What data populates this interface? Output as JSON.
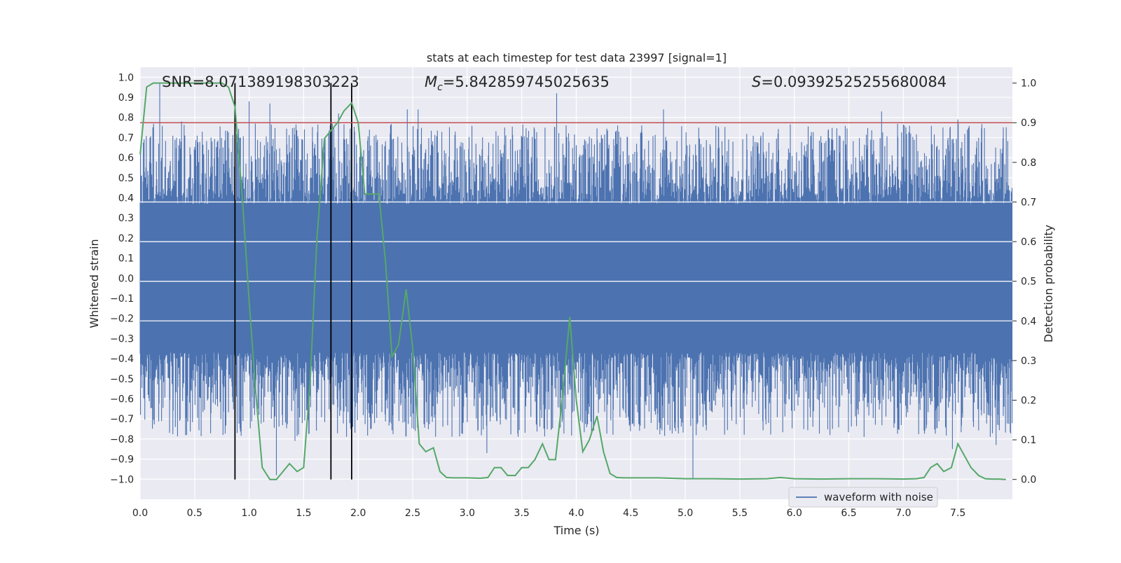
{
  "chart_data": {
    "type": "line",
    "title": "stats at each timestep for test data 23997 [signal=1]",
    "xlabel": "Time (s)",
    "ylabel_left": "Whitened strain",
    "ylabel_right": "Detection probability",
    "xlim": [
      0.0,
      8.0
    ],
    "ylim_left": [
      -1.1,
      1.05
    ],
    "ylim_right": [
      -0.05,
      1.04
    ],
    "x_ticks": [
      "0.0",
      "0.5",
      "1.0",
      "1.5",
      "2.0",
      "2.5",
      "3.0",
      "3.5",
      "4.0",
      "4.5",
      "5.0",
      "5.5",
      "6.0",
      "6.5",
      "7.0",
      "7.5"
    ],
    "y_ticks_left": [
      "1.0",
      "0.9",
      "0.8",
      "0.7",
      "0.6",
      "0.5",
      "0.4",
      "0.3",
      "0.2",
      "0.1",
      "0.0",
      "−0.1",
      "−0.2",
      "−0.3",
      "−0.4",
      "−0.5",
      "−0.6",
      "−0.7",
      "−0.8",
      "−0.9",
      "−1.0"
    ],
    "y_ticks_right": [
      "1.0",
      "0.9",
      "0.8",
      "0.7",
      "0.6",
      "0.5",
      "0.4",
      "0.3",
      "0.2",
      "0.1",
      "0.0"
    ],
    "grid": true,
    "legend_position": "bottom-right",
    "annotations": {
      "snr": "SNR=8.071389198303223",
      "mc_symbol": "M",
      "mc_sub": "c",
      "mc_value": "=5.842859745025635",
      "s_symbol": "S",
      "s_value": "=0.09392525255680084"
    },
    "series": [
      {
        "name": "waveform with noise",
        "color": "#4c72b0",
        "axis": "left",
        "description_kind": "dense noisy strain",
        "band": [
          -0.37,
          0.37
        ],
        "peaks": [
          {
            "x": 0.18,
            "y": 0.97
          },
          {
            "x": 0.38,
            "y": 0.78
          },
          {
            "x": 0.65,
            "y": 0.7
          },
          {
            "x": 1.0,
            "y": 0.88
          },
          {
            "x": 1.19,
            "y": 0.87
          },
          {
            "x": 1.82,
            "y": 0.82
          },
          {
            "x": 2.45,
            "y": 0.84
          },
          {
            "x": 2.55,
            "y": 0.84
          },
          {
            "x": 3.82,
            "y": 0.92
          },
          {
            "x": 4.8,
            "y": 0.84
          },
          {
            "x": 6.8,
            "y": 0.83
          },
          {
            "x": 7.5,
            "y": 0.79
          },
          {
            "x": 2.27,
            "y": -0.6
          },
          {
            "x": 1.25,
            "y": -0.98
          },
          {
            "x": 5.07,
            "y": -1.0
          },
          {
            "x": 7.45,
            "y": -0.85
          },
          {
            "x": 7.85,
            "y": -0.83
          },
          {
            "x": 0.27,
            "y": -0.77
          },
          {
            "x": 3.18,
            "y": -0.87
          },
          {
            "x": 1.42,
            "y": -0.81
          },
          {
            "x": 3.9,
            "y": -0.65
          }
        ]
      },
      {
        "name": "",
        "color": "#55a868",
        "axis": "right",
        "x": [
          0.0,
          0.06,
          0.12,
          0.25,
          0.5,
          0.75,
          0.81,
          0.87,
          0.94,
          1.0,
          1.06,
          1.12,
          1.19,
          1.25,
          1.31,
          1.37,
          1.44,
          1.5,
          1.56,
          1.62,
          1.69,
          1.75,
          1.81,
          1.87,
          1.94,
          2.0,
          2.06,
          2.12,
          2.19,
          2.25,
          2.31,
          2.37,
          2.44,
          2.5,
          2.56,
          2.62,
          2.69,
          2.75,
          2.81,
          2.87,
          3.0,
          3.12,
          3.19,
          3.25,
          3.31,
          3.37,
          3.44,
          3.5,
          3.56,
          3.62,
          3.69,
          3.75,
          3.81,
          3.87,
          3.94,
          4.0,
          4.06,
          4.12,
          4.19,
          4.25,
          4.31,
          4.37,
          4.44,
          4.5,
          4.75,
          5.0,
          5.25,
          5.5,
          5.75,
          5.87,
          6.0,
          6.25,
          6.5,
          6.75,
          7.0,
          7.12,
          7.19,
          7.25,
          7.31,
          7.37,
          7.44,
          7.5,
          7.56,
          7.62,
          7.69,
          7.75,
          7.81,
          7.87,
          7.94
        ],
        "y": [
          0.82,
          0.99,
          1.0,
          1.0,
          1.0,
          1.0,
          0.99,
          0.94,
          0.7,
          0.45,
          0.22,
          0.03,
          0.0,
          0.0,
          0.02,
          0.04,
          0.02,
          0.03,
          0.25,
          0.6,
          0.86,
          0.88,
          0.9,
          0.93,
          0.95,
          0.9,
          0.72,
          0.72,
          0.72,
          0.55,
          0.31,
          0.34,
          0.48,
          0.33,
          0.09,
          0.07,
          0.08,
          0.02,
          0.005,
          0.004,
          0.004,
          0.003,
          0.005,
          0.03,
          0.03,
          0.01,
          0.01,
          0.03,
          0.03,
          0.05,
          0.09,
          0.05,
          0.05,
          0.2,
          0.41,
          0.2,
          0.07,
          0.1,
          0.16,
          0.07,
          0.015,
          0.005,
          0.004,
          0.004,
          0.004,
          0.002,
          0.002,
          0.001,
          0.002,
          0.005,
          0.002,
          0.001,
          0.002,
          0.002,
          0.001,
          0.002,
          0.005,
          0.03,
          0.04,
          0.02,
          0.03,
          0.09,
          0.06,
          0.03,
          0.01,
          0.002,
          0.001,
          0.001,
          0.0
        ]
      },
      {
        "name": "",
        "color": "#c44e52",
        "axis": "right",
        "kind": "threshold",
        "y": 0.9
      }
    ],
    "vertical_markers": {
      "color": "#000000",
      "x": [
        0.87,
        1.75,
        1.94
      ]
    }
  },
  "legend": {
    "label": "waveform with noise"
  }
}
